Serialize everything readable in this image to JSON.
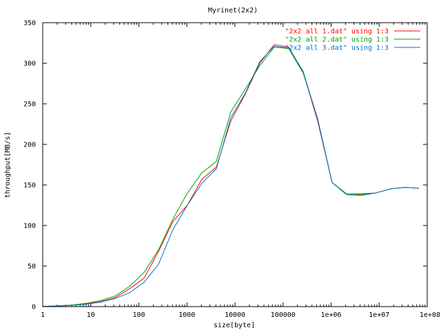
{
  "chart_data": {
    "type": "line",
    "title": "Myrinet(2x2)",
    "xlabel": "size[byte]",
    "ylabel": "throughput[MB/s]",
    "x_scale": "log",
    "xlim": [
      1,
      100000000
    ],
    "ylim": [
      0,
      350
    ],
    "x_ticks": [
      "1",
      "10",
      "100",
      "1000",
      "10000",
      "100000",
      "1e+06",
      "1e+07",
      "1e+08"
    ],
    "y_ticks": [
      "0",
      "50",
      "100",
      "150",
      "200",
      "250",
      "300",
      "350"
    ],
    "grid": false,
    "legend_position": "top-right",
    "series": [
      {
        "name": "\"2x2 all 1.dat\" using 1:3",
        "color": "#ff0000",
        "x": [
          1,
          2,
          4,
          8,
          16,
          32,
          64,
          128,
          256,
          512,
          1024,
          2048,
          4096,
          8192,
          16384,
          32768,
          65536,
          131072,
          262144,
          524288,
          1048576,
          2097152,
          4194304,
          8388608,
          16777216,
          33554432,
          67108864
        ],
        "y": [
          0.3,
          0.8,
          1.7,
          3.5,
          6.3,
          11,
          22,
          35,
          68,
          105,
          125,
          157,
          172,
          229,
          262,
          300,
          323,
          320,
          289,
          229,
          153,
          139,
          139,
          140,
          145,
          147,
          146
        ]
      },
      {
        "name": "\"2x2 all 2.dat\" using 1:3",
        "color": "#00a000",
        "x": [
          1,
          2,
          4,
          8,
          16,
          32,
          64,
          128,
          256,
          512,
          1024,
          2048,
          4096,
          8192,
          16384,
          32768,
          65536,
          131072,
          262144,
          524288,
          1048576,
          2097152,
          4194304,
          8388608,
          16777216,
          33554432,
          67108864
        ],
        "y": [
          0.3,
          0.9,
          1.9,
          4.0,
          7.5,
          13,
          25,
          42,
          70,
          108,
          140,
          165,
          179,
          240,
          268,
          297,
          320,
          318,
          288,
          232,
          153,
          139,
          138,
          140,
          145,
          147,
          146
        ]
      },
      {
        "name": "\"2x2 all 3.dat\" using 1:3",
        "color": "#0070d0",
        "x": [
          1,
          2,
          4,
          8,
          16,
          32,
          64,
          128,
          256,
          512,
          1024,
          2048,
          4096,
          8192,
          16384,
          32768,
          65536,
          131072,
          262144,
          524288,
          1048576,
          2097152,
          4194304,
          8388608,
          16777216,
          33554432,
          67108864
        ],
        "y": [
          0.2,
          0.7,
          1.5,
          3.0,
          5.5,
          10,
          17,
          30,
          52,
          95,
          125,
          152,
          170,
          233,
          263,
          302,
          321,
          319,
          290,
          231,
          153,
          138,
          137,
          140,
          145,
          147,
          146
        ]
      }
    ]
  }
}
